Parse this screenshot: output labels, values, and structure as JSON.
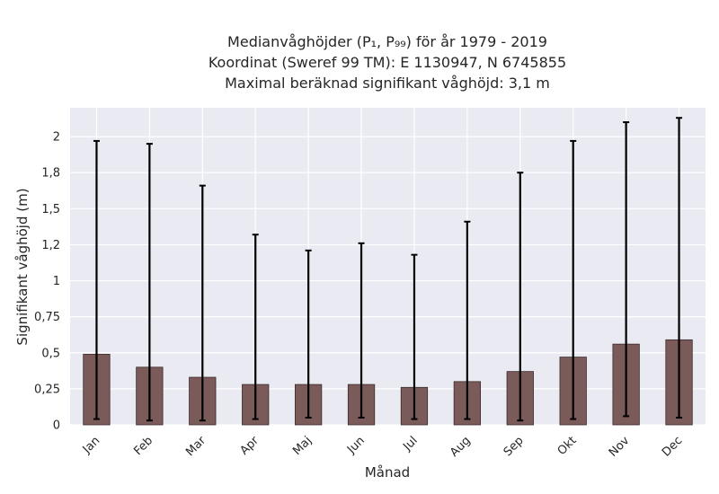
{
  "chart_data": {
    "type": "bar",
    "title_lines": [
      "Medianvåghöjder (P₁, P₉₉) för år 1979 - 2019",
      "Koordinat (Sweref 99 TM): E 1130947, N 6745855",
      "Maximal beräknad signifikant våghöjd: 3,1 m"
    ],
    "xlabel": "Månad",
    "ylabel": "Signifikant våghöjd (m)",
    "categories": [
      "Jan",
      "Feb",
      "Mar",
      "Apr",
      "Maj",
      "Jun",
      "Jul",
      "Aug",
      "Sep",
      "Okt",
      "Nov",
      "Dec"
    ],
    "series": [
      {
        "values": [
          0.49,
          0.4,
          0.33,
          0.28,
          0.28,
          0.28,
          0.26,
          0.3,
          0.37,
          0.47,
          0.56,
          0.59
        ],
        "lower": [
          0.04,
          0.03,
          0.03,
          0.04,
          0.05,
          0.05,
          0.04,
          0.04,
          0.03,
          0.04,
          0.06,
          0.05
        ],
        "upper": [
          1.97,
          1.95,
          1.66,
          1.32,
          1.21,
          1.26,
          1.18,
          1.41,
          1.75,
          1.97,
          2.1,
          2.13
        ]
      }
    ],
    "ylim": [
      0,
      2.2
    ],
    "yticks": [
      0,
      0.25,
      0.5,
      0.75,
      1,
      1.25,
      1.5,
      1.75,
      2
    ],
    "ytick_labels": [
      "0",
      "0,25",
      "0,5",
      "0,75",
      "1",
      "1,2",
      "1,5",
      "1,8",
      "2"
    ],
    "grid": true,
    "colors": {
      "bar": "#7b5a5a",
      "bar_edge": "#3a2a2a",
      "errorbar": "#000000",
      "plot_background": "#eaeaf2",
      "grid": "#ffffff"
    }
  }
}
